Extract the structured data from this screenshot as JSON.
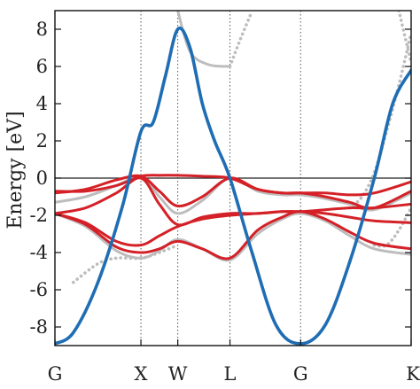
{
  "chart_data": {
    "type": "line",
    "ylabel": "Energy [eV]",
    "xlabel": "",
    "ylim": [
      -9,
      9
    ],
    "xlim": [
      0,
      5.8
    ],
    "yticks": [
      8,
      6,
      4,
      2,
      0,
      -2,
      -4,
      -6,
      -8
    ],
    "ytick_labels": [
      "8",
      "6",
      "4",
      "2",
      "0",
      "-2",
      "-4",
      "-6",
      "-8"
    ],
    "kpoints": [
      {
        "label": "G",
        "x": 0
      },
      {
        "label": "X",
        "x": 1.4
      },
      {
        "label": "W",
        "x": 2.0
      },
      {
        "label": "L",
        "x": 2.85
      },
      {
        "label": "G",
        "x": 4.0
      },
      {
        "label": "K",
        "x": 5.8
      }
    ],
    "fermi_level": 0,
    "colors": {
      "blue": "#1f6db3",
      "red": "#d42027",
      "gray": "#bdbdbd"
    },
    "series": [
      {
        "color": "#1f6db3",
        "style": "solid",
        "x": [
          0,
          0.3,
          0.7,
          1.1,
          1.4,
          1.6,
          1.8,
          2.0,
          2.2,
          2.4,
          2.6,
          2.85,
          3.2,
          3.6,
          4.0,
          4.4,
          4.8,
          5.2,
          5.5,
          5.8
        ],
        "y": [
          -8.9,
          -8.3,
          -5.6,
          -1.5,
          2.5,
          3.0,
          5.5,
          8.0,
          7.0,
          4.0,
          2.0,
          0.0,
          -3.9,
          -7.9,
          -8.9,
          -7.9,
          -4.5,
          0.0,
          4.0,
          5.8
        ]
      },
      {
        "color": "#d42027",
        "style": "solid",
        "x": [
          0,
          0.5,
          1.0,
          1.4,
          1.7,
          2.0,
          2.4,
          2.85,
          3.3,
          3.7,
          4.0,
          4.4,
          4.8,
          5.2,
          5.8
        ],
        "y": [
          -0.7,
          -0.7,
          -0.4,
          0.1,
          0.15,
          0.15,
          0.1,
          0.0,
          -0.6,
          -0.8,
          -0.8,
          -0.8,
          -0.9,
          -0.8,
          -0.2
        ]
      },
      {
        "color": "#d42027",
        "style": "solid",
        "x": [
          0,
          0.5,
          1.0,
          1.4,
          1.7,
          2.0,
          2.4,
          2.85,
          3.3,
          3.7,
          4.0,
          4.4,
          4.8,
          5.2,
          5.8
        ],
        "y": [
          -0.8,
          -0.6,
          -0.1,
          0.1,
          -0.7,
          -1.5,
          -1.0,
          0.0,
          -0.6,
          -0.8,
          -0.8,
          -1.0,
          -1.3,
          -1.6,
          -0.7
        ]
      },
      {
        "color": "#d42027",
        "style": "solid",
        "x": [
          0,
          0.5,
          1.0,
          1.4,
          1.7,
          2.0,
          2.4,
          2.85,
          3.3,
          3.7,
          4.0,
          4.4,
          4.8,
          5.2,
          5.8
        ],
        "y": [
          -1.9,
          -1.6,
          -0.8,
          0.0,
          -1.4,
          -2.5,
          -2.1,
          -1.9,
          -1.9,
          -1.8,
          -1.8,
          -1.7,
          -1.6,
          -1.6,
          -1.4
        ]
      },
      {
        "color": "#d42027",
        "style": "solid",
        "x": [
          0,
          0.5,
          1.0,
          1.4,
          1.7,
          2.0,
          2.4,
          2.85,
          3.3,
          3.7,
          4.0,
          4.4,
          4.8,
          5.2,
          5.8
        ],
        "y": [
          -1.9,
          -2.4,
          -3.4,
          -3.6,
          -3.1,
          -2.6,
          -2.2,
          -2.0,
          -1.9,
          -1.8,
          -1.8,
          -1.9,
          -2.1,
          -2.3,
          -2.4
        ]
      },
      {
        "color": "#d42027",
        "style": "solid",
        "x": [
          0,
          0.5,
          1.0,
          1.4,
          1.7,
          2.0,
          2.4,
          2.85,
          3.3,
          3.7,
          4.0,
          4.4,
          4.8,
          5.2,
          5.8
        ],
        "y": [
          -1.9,
          -2.5,
          -3.7,
          -4.0,
          -3.8,
          -3.4,
          -3.8,
          -4.3,
          -2.8,
          -2.1,
          -1.8,
          -2.2,
          -2.9,
          -3.5,
          -3.8
        ]
      },
      {
        "color": "#bdbdbd",
        "style": "solid",
        "x": [
          0,
          0.5,
          1.0,
          1.4,
          1.7,
          2.0,
          2.4,
          2.85,
          3.3,
          3.7,
          4.0,
          4.4,
          4.8,
          5.2,
          5.8
        ],
        "y": [
          -1.9,
          -2.6,
          -3.9,
          -4.3,
          -3.9,
          -3.3,
          -3.8,
          -4.4,
          -3.0,
          -2.2,
          -1.9,
          -2.3,
          -3.1,
          -3.8,
          -4.1
        ]
      },
      {
        "color": "#bdbdbd",
        "style": "solid",
        "x": [
          0,
          0.5,
          1.0,
          1.4,
          1.7,
          2.0,
          2.4,
          2.85,
          3.3,
          3.7,
          4.0,
          4.4,
          4.8,
          5.2,
          5.8
        ],
        "y": [
          -1.3,
          -1.0,
          -0.4,
          0.1,
          -1.0,
          -1.9,
          -1.2,
          0.0,
          -0.7,
          -0.9,
          -0.9,
          -1.1,
          -1.4,
          -1.7,
          -0.8
        ]
      },
      {
        "color": "#bdbdbd",
        "style": "solid",
        "x": [
          2.0,
          2.2,
          2.5,
          2.85
        ],
        "y": [
          9.0,
          6.8,
          6.1,
          6.0
        ]
      },
      {
        "color": "#bdbdbd",
        "style": "dotted",
        "x": [
          2.85,
          3.0,
          3.2
        ],
        "y": [
          6.0,
          7.3,
          8.9
        ]
      },
      {
        "color": "#bdbdbd",
        "style": "dotted",
        "x": [
          0.3,
          0.7,
          1.0,
          1.4,
          1.7,
          2.0
        ],
        "y": [
          -5.6,
          -4.6,
          -4.3,
          -4.3,
          -4.0,
          -3.6
        ]
      },
      {
        "color": "#bdbdbd",
        "style": "dotted",
        "x": [
          4.8,
          5.0,
          5.2,
          5.4,
          5.6,
          5.8
        ],
        "y": [
          -1.6,
          -1.0,
          0.3,
          2.5,
          5.0,
          7.8
        ]
      },
      {
        "color": "#bdbdbd",
        "style": "dotted",
        "x": [
          5.2,
          5.4,
          5.6,
          5.8
        ],
        "y": [
          -3.6,
          -3.6,
          -2.8,
          -1.6
        ]
      },
      {
        "color": "#bdbdbd",
        "style": "dotted",
        "x": [
          5.6,
          5.8
        ],
        "y": [
          9.0,
          6.2
        ]
      }
    ]
  }
}
